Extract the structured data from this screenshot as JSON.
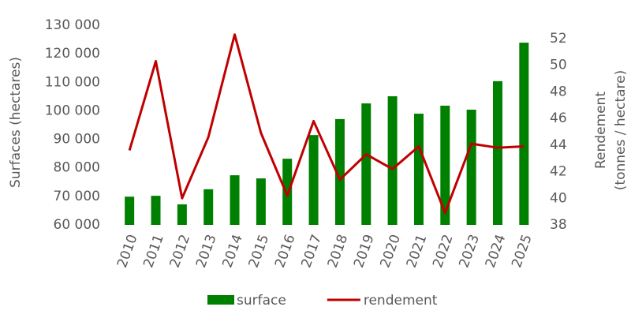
{
  "chart_data": {
    "type": "bar_line",
    "categories": [
      "2010",
      "2011",
      "2012",
      "2013",
      "2014",
      "2015",
      "2016",
      "2017",
      "2018",
      "2019",
      "2020",
      "2021",
      "2022",
      "2023",
      "2024",
      "2025"
    ],
    "series": [
      {
        "name": "surface",
        "type": "bar",
        "color": "#008000",
        "values": [
          69900,
          70200,
          67200,
          72500,
          77400,
          76300,
          83200,
          91500,
          97100,
          102600,
          105100,
          99000,
          101800,
          100400,
          110400,
          123900
        ]
      },
      {
        "name": "rendement",
        "type": "line",
        "axis": "y2",
        "color": "#c00000",
        "values": [
          43.6,
          50.3,
          40.0,
          44.6,
          52.3,
          44.9,
          40.2,
          45.8,
          41.4,
          43.3,
          42.2,
          43.9,
          38.9,
          44.1,
          43.8,
          43.9
        ]
      }
    ],
    "ylabel": "Surfaces (hectares)",
    "y2label": [
      "Rendement",
      "(tonnes / hectare)"
    ],
    "ylim": [
      60000,
      130000
    ],
    "yticks": [
      {
        "value": 60000,
        "label": "60 000"
      },
      {
        "value": 70000,
        "label": "70 000"
      },
      {
        "value": 80000,
        "label": "80 000"
      },
      {
        "value": 90000,
        "label": "90 000"
      },
      {
        "value": 100000,
        "label": "100 000"
      },
      {
        "value": 110000,
        "label": "110 000"
      },
      {
        "value": 120000,
        "label": "120 000"
      },
      {
        "value": 130000,
        "label": "130 000"
      }
    ],
    "y2lim": [
      38,
      53
    ],
    "y2ticks": [
      38,
      40,
      42,
      44,
      46,
      48,
      50,
      52
    ],
    "legend": "bottom"
  }
}
